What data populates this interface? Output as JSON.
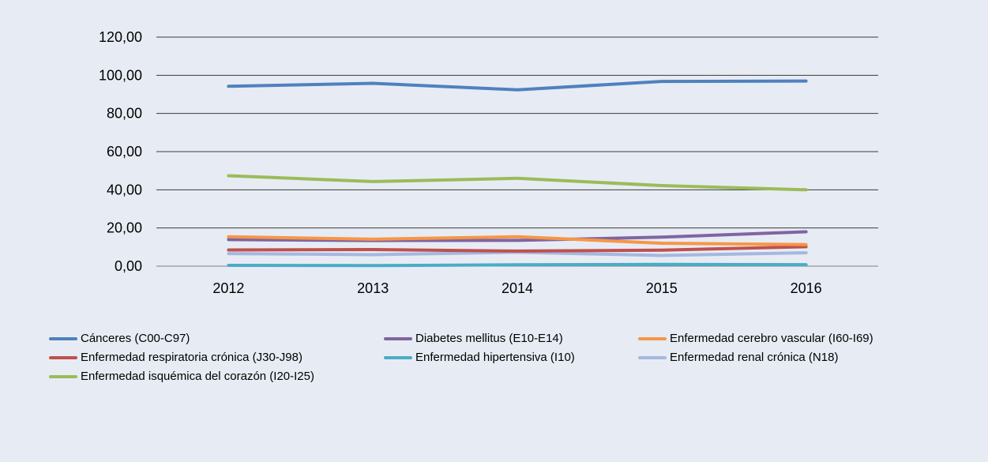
{
  "chart_data": {
    "type": "line",
    "title": "",
    "xlabel": "",
    "ylabel": "",
    "categories": [
      "2012",
      "2013",
      "2014",
      "2015",
      "2016"
    ],
    "y_ticks": [
      "0,00",
      "20,00",
      "40,00",
      "60,00",
      "80,00",
      "100,00",
      "120,00"
    ],
    "ylim": [
      0,
      120
    ],
    "grid": "horizontal",
    "legend_position": "bottom",
    "background": "#e7ecf4",
    "series": [
      {
        "name": "Cánceres (C00-C97)",
        "color": "#4f81bd",
        "values": [
          94.2,
          95.8,
          92.4,
          96.8,
          97.0
        ]
      },
      {
        "name": "Diabetes mellitus (E10-E14)",
        "color": "#8064a2",
        "values": [
          13.9,
          13.4,
          13.5,
          15.2,
          18.0
        ]
      },
      {
        "name": "Enfermedad cerebro vascular (I60-I69)",
        "color": "#f79646",
        "values": [
          15.4,
          14.1,
          15.4,
          12.0,
          11.3
        ]
      },
      {
        "name": "Enfermedad respiratoria crónica (J30-J98)",
        "color": "#c0504d",
        "values": [
          8.5,
          8.7,
          7.9,
          8.4,
          10.2
        ]
      },
      {
        "name": "Enfermedad hipertensiva (I10)",
        "color": "#4bacc6",
        "values": [
          0.4,
          0.3,
          0.7,
          0.9,
          0.8
        ]
      },
      {
        "name": "Enfermedad renal crónica (N18)",
        "color": "#a5b8e0",
        "values": [
          6.6,
          6.0,
          7.3,
          5.6,
          7.0
        ]
      },
      {
        "name": "Enfermedad isquémica del corazón (I20-I25)",
        "color": "#9bbb59",
        "values": [
          47.4,
          44.3,
          46.0,
          42.2,
          40.0
        ]
      }
    ]
  }
}
